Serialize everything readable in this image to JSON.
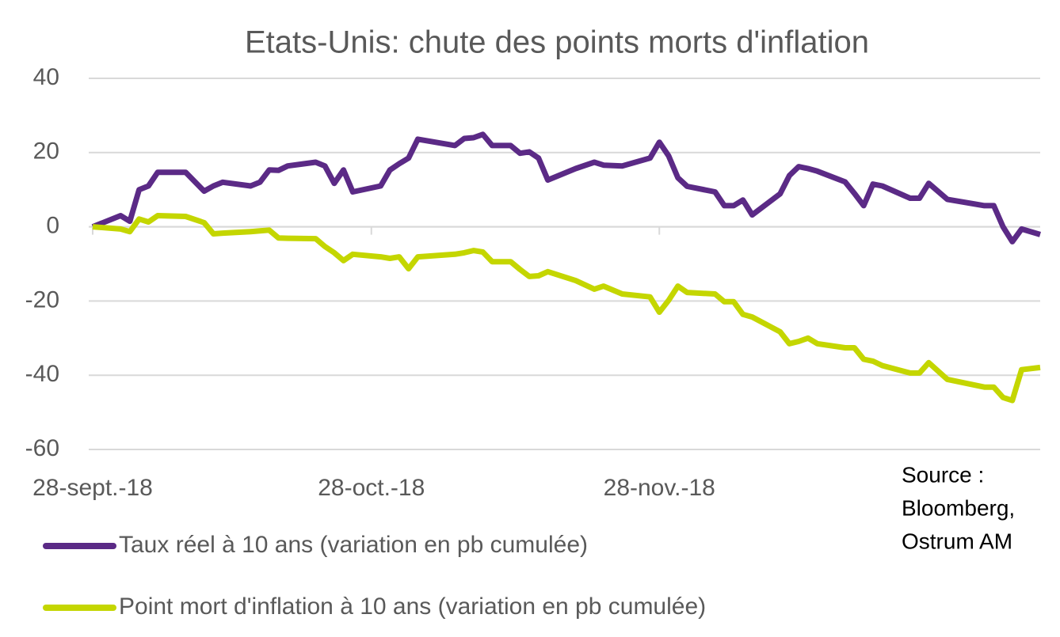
{
  "chart_data": {
    "type": "line",
    "title": "Etats-Unis: chute des points morts d'inflation",
    "source": [
      "Source :",
      "Bloomberg,",
      "Ostrum AM"
    ],
    "x": [
      "2018-09-28",
      "2018-10-01",
      "2018-10-02",
      "2018-10-03",
      "2018-10-04",
      "2018-10-05",
      "2018-10-08",
      "2018-10-10",
      "2018-10-11",
      "2018-10-12",
      "2018-10-15",
      "2018-10-16",
      "2018-10-17",
      "2018-10-18",
      "2018-10-19",
      "2018-10-22",
      "2018-10-23",
      "2018-10-24",
      "2018-10-25",
      "2018-10-26",
      "2018-10-29",
      "2018-10-30",
      "2018-10-31",
      "2018-11-01",
      "2018-11-02",
      "2018-11-06",
      "2018-11-07",
      "2018-11-08",
      "2018-11-09",
      "2018-11-10",
      "2018-11-12",
      "2018-11-13",
      "2018-11-14",
      "2018-11-15",
      "2018-11-16",
      "2018-11-19",
      "2018-11-21",
      "2018-11-22",
      "2018-11-24",
      "2018-11-27",
      "2018-11-28",
      "2018-11-29",
      "2018-11-30",
      "2018-12-01",
      "2018-12-04",
      "2018-12-05",
      "2018-12-06",
      "2018-12-07",
      "2018-12-08",
      "2018-12-11",
      "2018-12-12",
      "2018-12-13",
      "2018-12-14",
      "2018-12-15",
      "2018-12-18",
      "2018-12-19",
      "2018-12-20",
      "2018-12-21",
      "2018-12-22",
      "2018-12-25",
      "2018-12-26",
      "2018-12-27",
      "2018-12-29",
      "2019-01-02",
      "2019-01-03",
      "2019-01-04",
      "2019-01-05",
      "2019-01-06",
      "2019-01-08"
    ],
    "series": [
      {
        "name": "Taux réel à 10 ans (variation en pb cumulée)",
        "color": "#5b2a86",
        "values": [
          0,
          3,
          1.5,
          10,
          11,
          14.7,
          14.7,
          9.6,
          11,
          12,
          11,
          12,
          15.3,
          15.2,
          16.4,
          17.4,
          16.4,
          11.7,
          15.3,
          9.4,
          11,
          15.3,
          17,
          18.5,
          23.6,
          21.9,
          23.8,
          24,
          24.9,
          21.9,
          21.9,
          19.8,
          20.2,
          18.5,
          12.6,
          15.7,
          17.4,
          16.6,
          16.4,
          18.5,
          22.8,
          19.1,
          13.2,
          10.9,
          9.4,
          5.7,
          5.7,
          7.2,
          3.2,
          8.9,
          13.8,
          16.2,
          15.7,
          15,
          12.1,
          9,
          5.7,
          11.5,
          11,
          7.7,
          7.7,
          11.7,
          7.4,
          5.7,
          5.7,
          0,
          -4,
          -0.6,
          -2.1
        ]
      },
      {
        "name": "Point mort d'inflation à 10 ans (variation en pb cumulée)",
        "color": "#c4d600",
        "values": [
          0,
          -0.6,
          -1.3,
          2.1,
          1.3,
          3,
          2.8,
          1.1,
          -1.9,
          -1.7,
          -1.3,
          -1.1,
          -0.9,
          -3,
          -3.1,
          -3.2,
          -5.3,
          -7,
          -9.1,
          -7.4,
          -8.1,
          -8.5,
          -8.1,
          -11.3,
          -8.1,
          -7.4,
          -7,
          -6.4,
          -6.8,
          -9.4,
          -9.4,
          -11.5,
          -13.4,
          -13.2,
          -12.1,
          -14.5,
          -16.8,
          -16,
          -18.1,
          -18.9,
          -23,
          -19.8,
          -16,
          -17.7,
          -18.1,
          -20.2,
          -20.2,
          -23.6,
          -24.3,
          -28.3,
          -31.5,
          -30.9,
          -30,
          -31.5,
          -32.6,
          -32.6,
          -35.7,
          -36.2,
          -37.4,
          -39.4,
          -39.4,
          -36.6,
          -41.1,
          -43.2,
          -43.2,
          -46,
          -46.8,
          -38.5,
          -37.9
        ]
      }
    ],
    "xlim": [
      "2018-09-28",
      "2019-01-08"
    ],
    "xticks": [
      {
        "value": "2018-09-28",
        "label": "28-sept.-18"
      },
      {
        "value": "2018-10-28",
        "label": "28-oct.-18"
      },
      {
        "value": "2018-11-28",
        "label": "28-nov.-18"
      }
    ],
    "ylim": [
      -60,
      40
    ],
    "yticks": [
      -60,
      -40,
      -20,
      0,
      20,
      40
    ],
    "grid": true
  }
}
